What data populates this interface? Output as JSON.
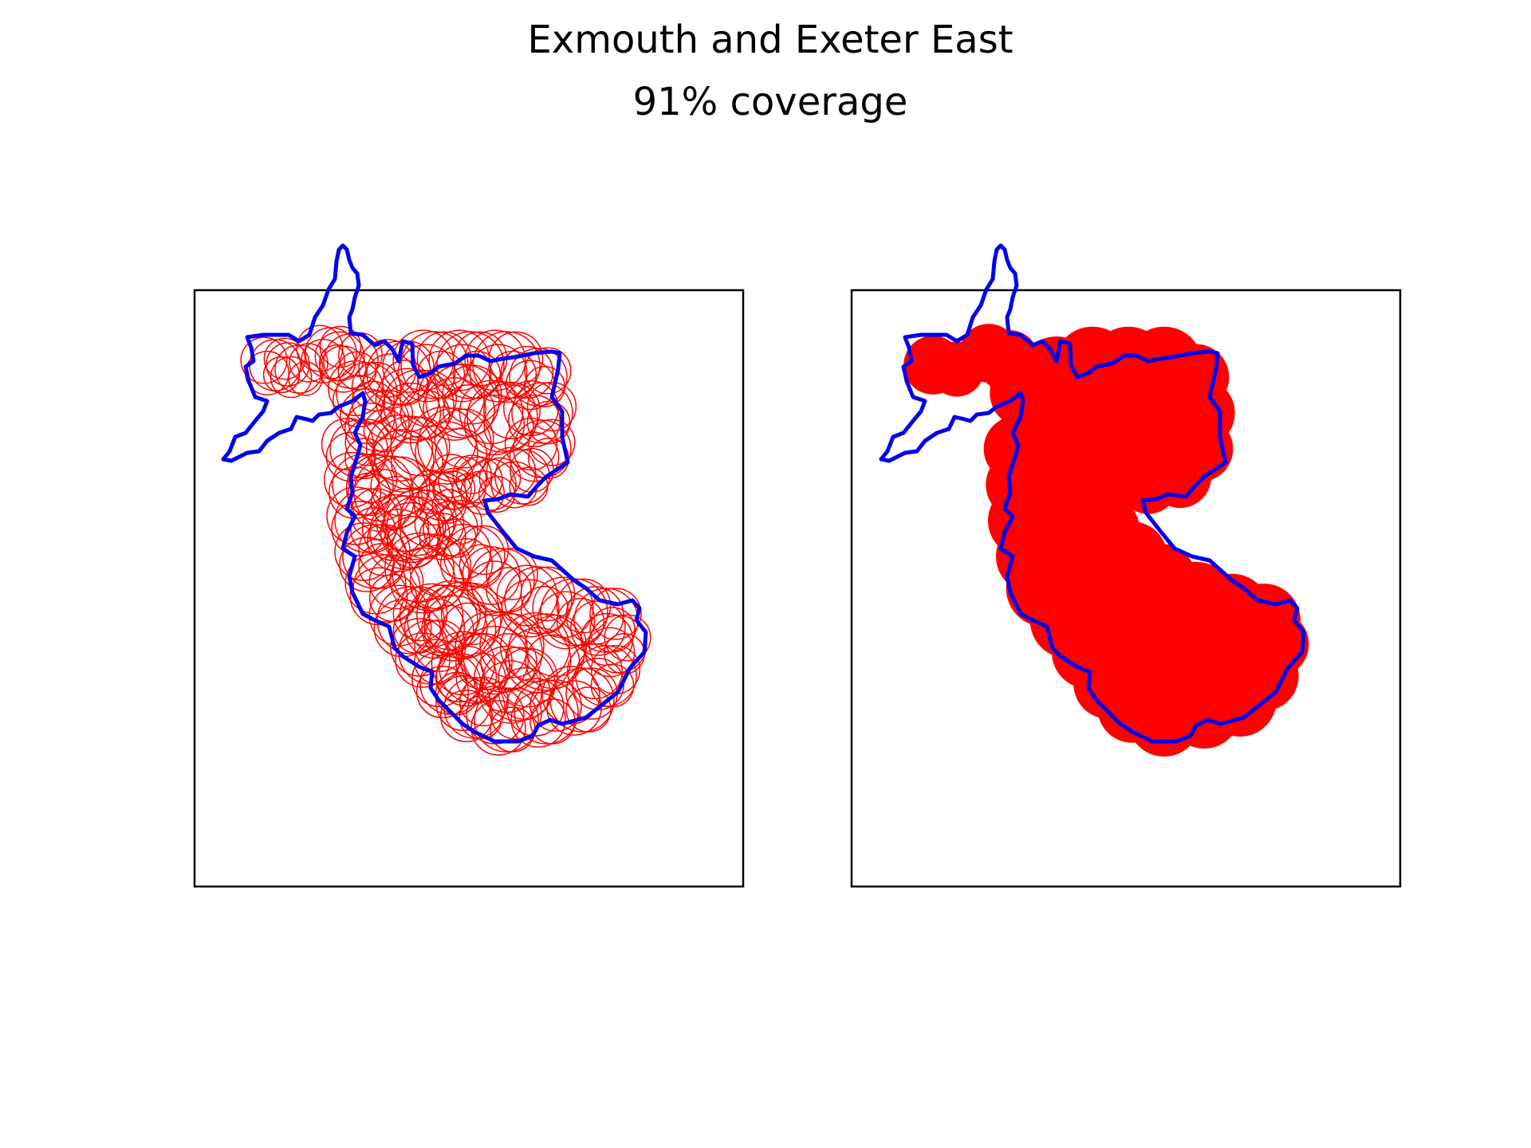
{
  "figure": {
    "title": "Exmouth and Exeter East",
    "subtitle": "91% coverage"
  },
  "colors": {
    "boundary": "#0000ee",
    "coverage": "#ff0000",
    "frame": "#000000",
    "background": "#ffffff"
  },
  "panels": [
    {
      "name": "circles-panel",
      "style": "circle outlines"
    },
    {
      "name": "coverage-panel",
      "style": "filled coverage"
    }
  ]
}
